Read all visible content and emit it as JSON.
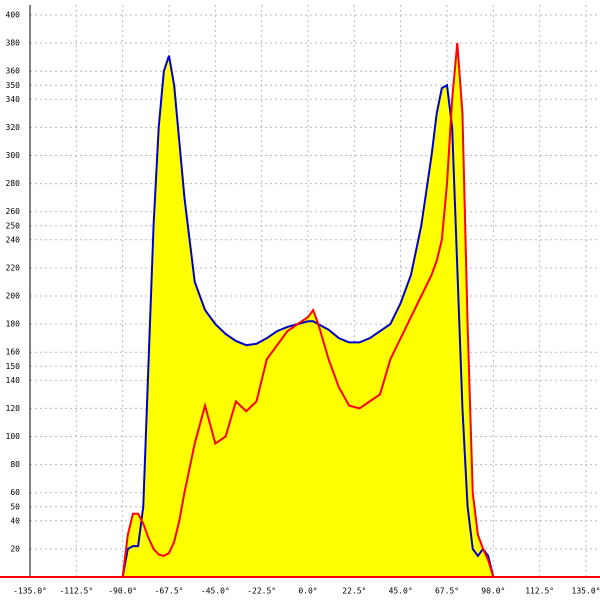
{
  "chart_data": {
    "type": "area-line",
    "x": [
      -90,
      -87.5,
      -85,
      -82.5,
      -80,
      -77.5,
      -75,
      -72.5,
      -70,
      -67.5,
      -65,
      -62.5,
      -60,
      -55,
      -50,
      -45,
      -40,
      -35,
      -30,
      -25,
      -20,
      -15,
      -10,
      -5,
      0,
      2.5,
      5,
      10,
      15,
      20,
      25,
      30,
      35,
      40,
      45,
      50,
      55,
      60,
      62.5,
      65,
      67.5,
      70,
      72.5,
      75,
      77.5,
      80,
      82.5,
      85,
      87.5,
      90
    ],
    "series": [
      {
        "color": "#0000cc",
        "values": [
          0,
          20,
          22,
          22,
          50,
          150,
          250,
          320,
          360,
          371,
          350,
          310,
          270,
          210,
          190,
          180,
          173,
          168,
          165,
          166,
          170,
          175,
          178,
          180,
          182,
          182,
          180,
          176,
          170,
          167,
          167,
          170,
          175,
          180,
          195,
          215,
          250,
          300,
          330,
          348,
          350,
          320,
          220,
          120,
          50,
          20,
          15,
          20,
          15,
          0
        ]
      },
      {
        "color": "#ff0000",
        "values": [
          0,
          30,
          45,
          45,
          38,
          28,
          20,
          16,
          15,
          17,
          25,
          40,
          60,
          95,
          122,
          95,
          100,
          125,
          118,
          125,
          155,
          165,
          175,
          180,
          185,
          190,
          180,
          155,
          135,
          122,
          120,
          125,
          130,
          155,
          170,
          185,
          200,
          215,
          225,
          240,
          280,
          340,
          380,
          330,
          180,
          60,
          30,
          20,
          12,
          0
        ]
      }
    ],
    "fill": "#ffff00",
    "xlim": [
      -135,
      135
    ],
    "xticks": [
      {
        "value": -135,
        "label": "-135.0°"
      },
      {
        "value": -112.5,
        "label": "-112.5°"
      },
      {
        "value": -90,
        "label": "-90.0°"
      },
      {
        "value": -67.5,
        "label": "-67.5°"
      },
      {
        "value": -45,
        "label": "-45.0°"
      },
      {
        "value": -22.5,
        "label": "-22.5°"
      },
      {
        "value": 0,
        "label": "0.0°"
      },
      {
        "value": 22.5,
        "label": "22.5°"
      },
      {
        "value": 45,
        "label": "45.0°"
      },
      {
        "value": 67.5,
        "label": "67.5°"
      },
      {
        "value": 90,
        "label": "90.0°"
      },
      {
        "value": 112.5,
        "label": "112.5°"
      },
      {
        "value": 135,
        "label": "135.0°"
      }
    ],
    "ylim": [
      0,
      400
    ],
    "yticks": [
      20,
      40,
      50,
      60,
      80,
      100,
      120,
      140,
      150,
      160,
      180,
      200,
      220,
      240,
      250,
      260,
      280,
      300,
      320,
      340,
      350,
      360,
      380,
      400
    ],
    "grid": true
  }
}
